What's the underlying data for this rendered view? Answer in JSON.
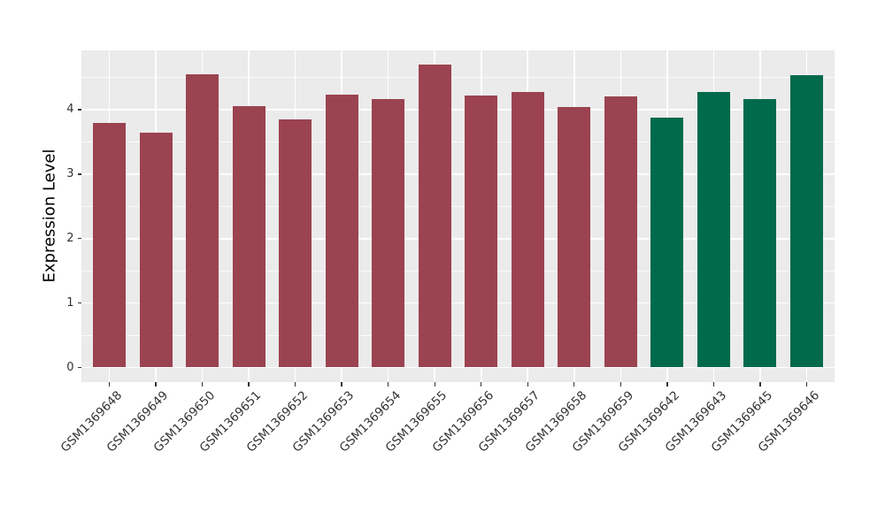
{
  "figure": {
    "background": "#ffffff",
    "panel_background": "#EBEBEB",
    "grid_color": "#FFFFFF",
    "axis_text_color": "#333333",
    "axis_title_color": "#000000"
  },
  "chart_data": {
    "type": "bar",
    "title": "",
    "xlabel": "",
    "ylabel": "Expression Level",
    "categories": [
      "GSM1369648",
      "GSM1369649",
      "GSM1369650",
      "GSM1369651",
      "GSM1369652",
      "GSM1369653",
      "GSM1369654",
      "GSM1369655",
      "GSM1369656",
      "GSM1369657",
      "GSM1369658",
      "GSM1369659",
      "GSM1369642",
      "GSM1369643",
      "GSM1369645",
      "GSM1369646"
    ],
    "values": [
      3.79,
      3.65,
      4.55,
      4.05,
      3.85,
      4.24,
      4.16,
      4.7,
      4.22,
      4.28,
      4.04,
      4.2,
      3.88,
      4.28,
      4.17,
      4.53
    ],
    "bar_group": [
      0,
      0,
      0,
      0,
      0,
      0,
      0,
      0,
      0,
      0,
      0,
      0,
      1,
      1,
      1,
      1
    ],
    "group_colors": [
      "#9B4350",
      "#016A4B"
    ],
    "y_ticks": [
      0,
      1,
      2,
      3,
      4
    ],
    "ylim": [
      -0.23,
      4.92
    ],
    "grid": "major-and-minor",
    "legend": "none"
  }
}
